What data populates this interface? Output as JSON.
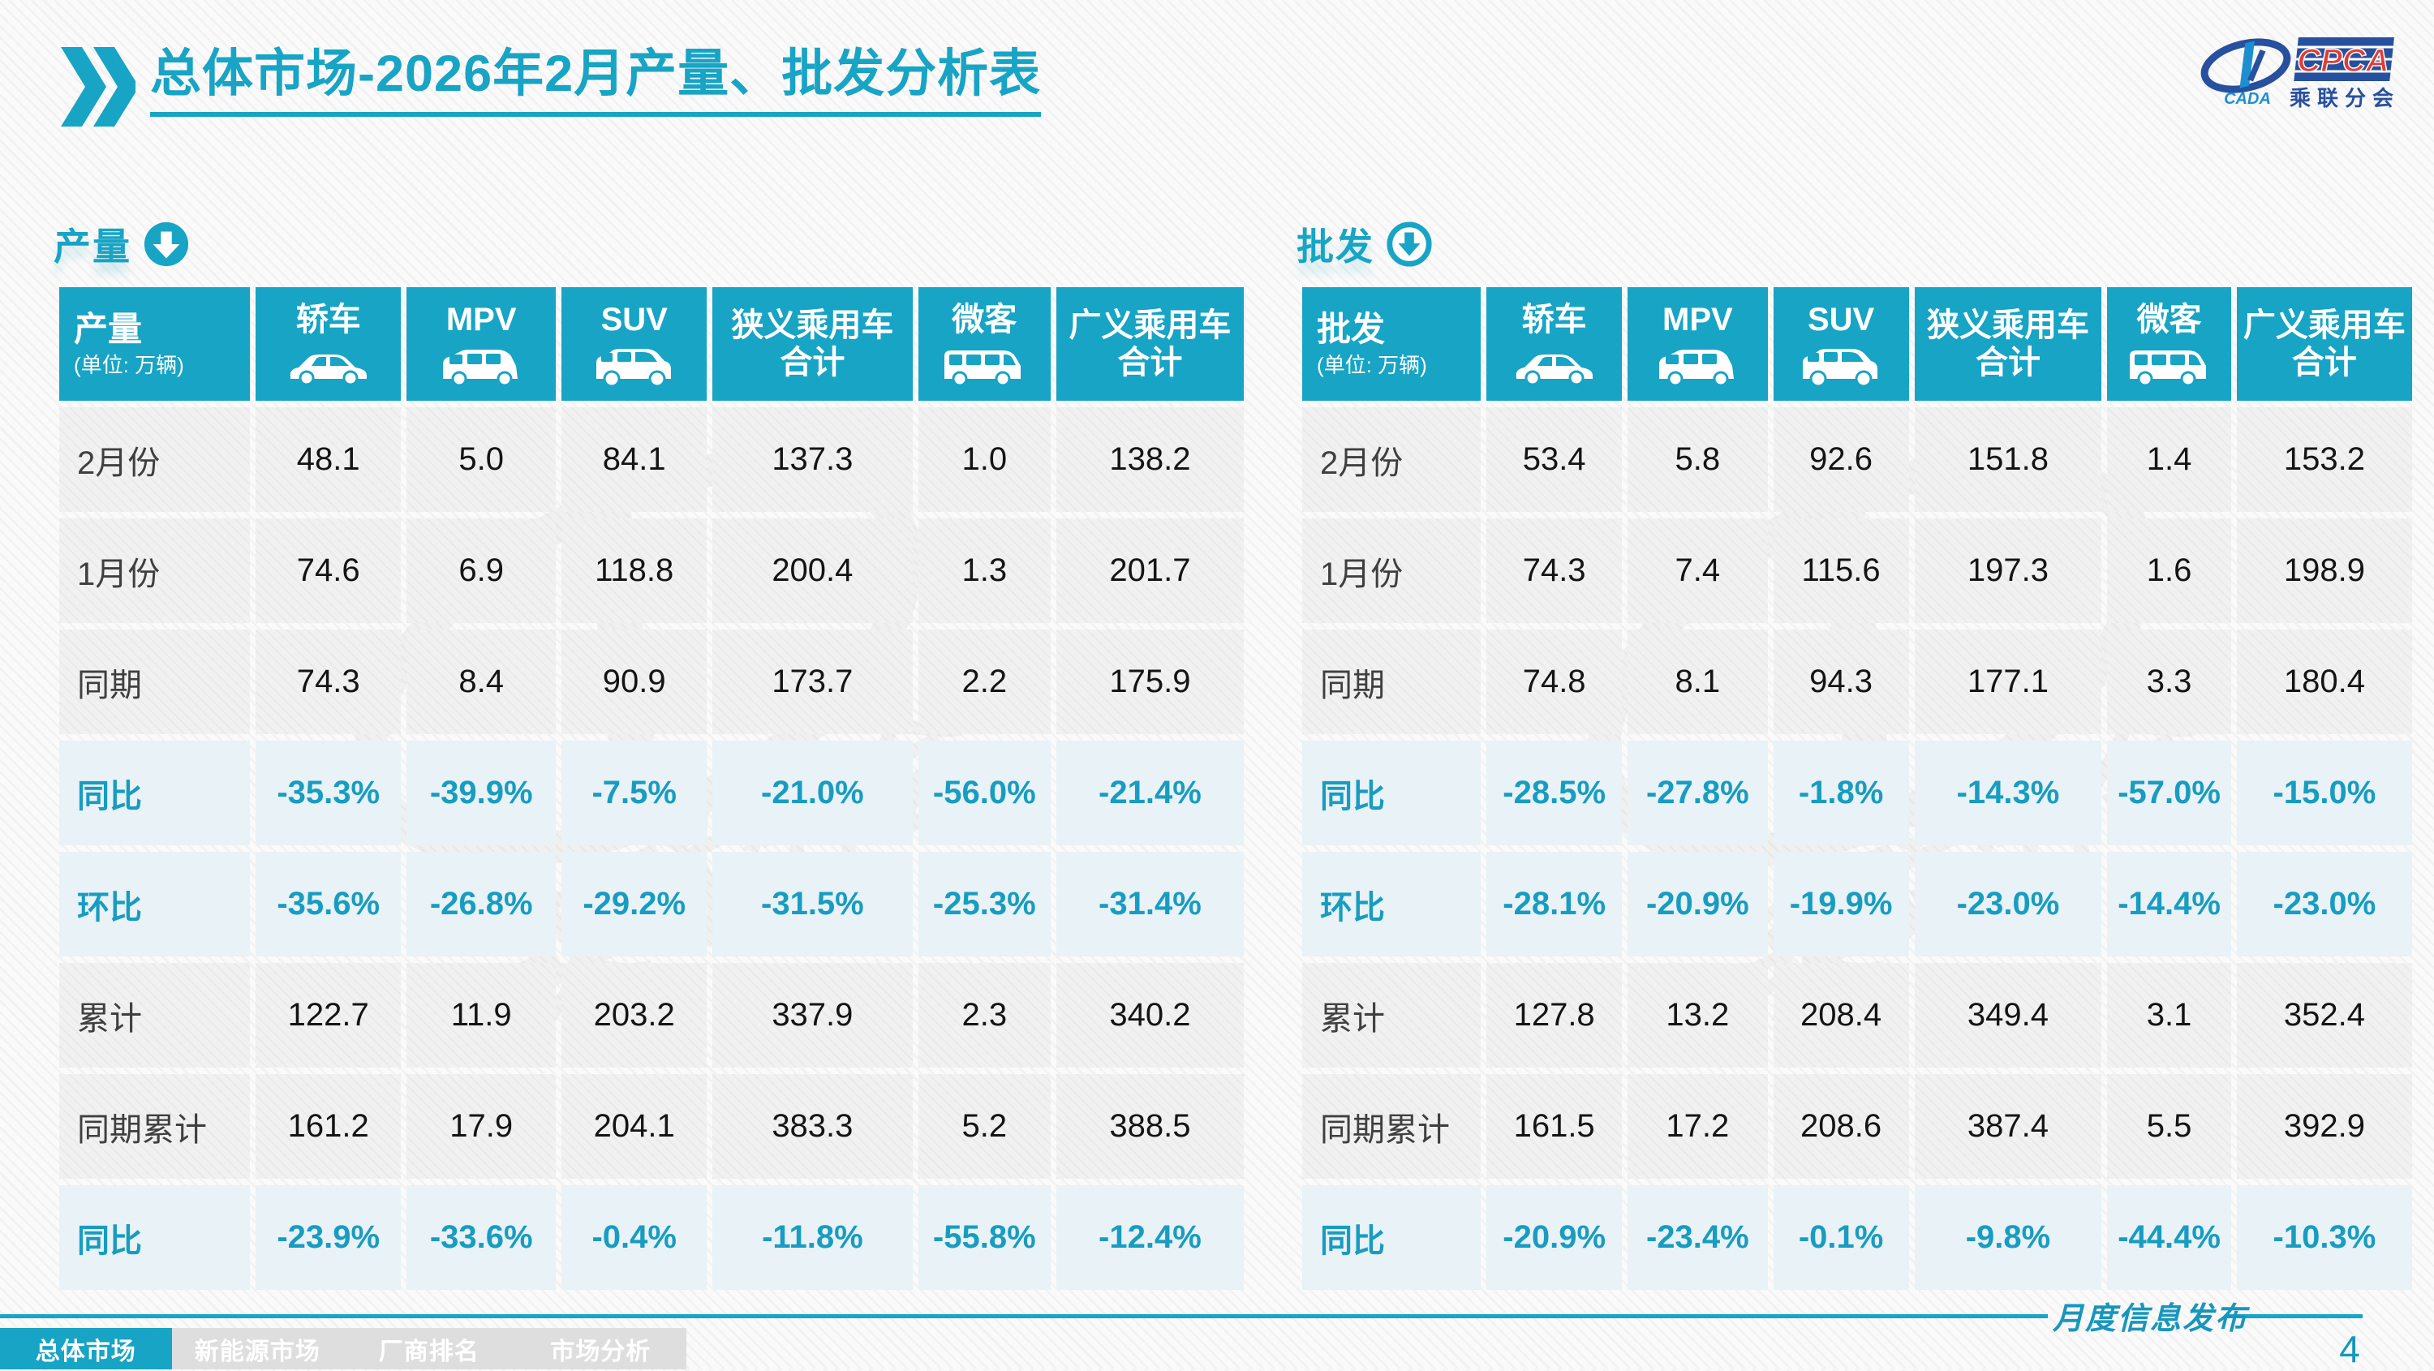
{
  "page": {
    "title_prefix": "总体市场",
    "title_suffix": "-2026年2月产量、批发分析表",
    "footer_label": "月度信息发布",
    "page_number": "4"
  },
  "logo": {
    "cpca": "CPCA",
    "cada": "CADA",
    "subtitle": "乘联分会"
  },
  "colors": {
    "accent": "#17a4c5",
    "percent_text": "#189cc0",
    "percent_bg": "#e8f2f7",
    "logo_blue": "#27509e",
    "logo_red": "#e23b35"
  },
  "tables": [
    {
      "section_label": "产量",
      "arrow_icon": "arrow-down-filled-icon",
      "unit_note": "(单位: 万辆)",
      "columns": [
        {
          "label": "轿车",
          "icon": "sedan-icon"
        },
        {
          "label": "MPV",
          "icon": "mpv-icon"
        },
        {
          "label": "SUV",
          "icon": "suv-icon"
        },
        {
          "label": "狭义乘用车合计",
          "icon": null
        },
        {
          "label": "微客",
          "icon": "minibus-icon"
        },
        {
          "label": "广义乘用车合计",
          "icon": null
        }
      ],
      "rows": [
        {
          "label": "2月份",
          "type": "value",
          "values": [
            "48.1",
            "5.0",
            "84.1",
            "137.3",
            "1.0",
            "138.2"
          ]
        },
        {
          "label": "1月份",
          "type": "value",
          "values": [
            "74.6",
            "6.9",
            "118.8",
            "200.4",
            "1.3",
            "201.7"
          ]
        },
        {
          "label": "同期",
          "type": "value",
          "values": [
            "74.3",
            "8.4",
            "90.9",
            "173.7",
            "2.2",
            "175.9"
          ]
        },
        {
          "label": "同比",
          "type": "percent",
          "values": [
            "-35.3%",
            "-39.9%",
            "-7.5%",
            "-21.0%",
            "-56.0%",
            "-21.4%"
          ]
        },
        {
          "label": "环比",
          "type": "percent",
          "values": [
            "-35.6%",
            "-26.8%",
            "-29.2%",
            "-31.5%",
            "-25.3%",
            "-31.4%"
          ]
        },
        {
          "label": "累计",
          "type": "value",
          "values": [
            "122.7",
            "11.9",
            "203.2",
            "337.9",
            "2.3",
            "340.2"
          ]
        },
        {
          "label": "同期累计",
          "type": "value",
          "values": [
            "161.2",
            "17.9",
            "204.1",
            "383.3",
            "5.2",
            "388.5"
          ]
        },
        {
          "label": "同比",
          "type": "percent",
          "values": [
            "-23.9%",
            "-33.6%",
            "-0.4%",
            "-11.8%",
            "-55.8%",
            "-12.4%"
          ]
        }
      ]
    },
    {
      "section_label": "批发",
      "arrow_icon": "arrow-down-ring-icon",
      "unit_note": "(单位: 万辆)",
      "columns": [
        {
          "label": "轿车",
          "icon": "sedan-icon"
        },
        {
          "label": "MPV",
          "icon": "mpv-icon"
        },
        {
          "label": "SUV",
          "icon": "suv-icon"
        },
        {
          "label": "狭义乘用车合计",
          "icon": null
        },
        {
          "label": "微客",
          "icon": "minibus-icon"
        },
        {
          "label": "广义乘用车合计",
          "icon": null
        }
      ],
      "rows": [
        {
          "label": "2月份",
          "type": "value",
          "values": [
            "53.4",
            "5.8",
            "92.6",
            "151.8",
            "1.4",
            "153.2"
          ]
        },
        {
          "label": "1月份",
          "type": "value",
          "values": [
            "74.3",
            "7.4",
            "115.6",
            "197.3",
            "1.6",
            "198.9"
          ]
        },
        {
          "label": "同期",
          "type": "value",
          "values": [
            "74.8",
            "8.1",
            "94.3",
            "177.1",
            "3.3",
            "180.4"
          ]
        },
        {
          "label": "同比",
          "type": "percent",
          "values": [
            "-28.5%",
            "-27.8%",
            "-1.8%",
            "-14.3%",
            "-57.0%",
            "-15.0%"
          ]
        },
        {
          "label": "环比",
          "type": "percent",
          "values": [
            "-28.1%",
            "-20.9%",
            "-19.9%",
            "-23.0%",
            "-14.4%",
            "-23.0%"
          ]
        },
        {
          "label": "累计",
          "type": "value",
          "values": [
            "127.8",
            "13.2",
            "208.4",
            "349.4",
            "3.1",
            "352.4"
          ]
        },
        {
          "label": "同期累计",
          "type": "value",
          "values": [
            "161.5",
            "17.2",
            "208.6",
            "387.4",
            "5.5",
            "392.9"
          ]
        },
        {
          "label": "同比",
          "type": "percent",
          "values": [
            "-20.9%",
            "-23.4%",
            "-0.1%",
            "-9.8%",
            "-44.4%",
            "-10.3%"
          ]
        }
      ]
    }
  ],
  "nav": {
    "tabs": [
      {
        "label": "总体市场",
        "active": true
      },
      {
        "label": "新能源市场",
        "active": false
      },
      {
        "label": "厂商排名",
        "active": false
      },
      {
        "label": "市场分析",
        "active": false
      }
    ]
  }
}
